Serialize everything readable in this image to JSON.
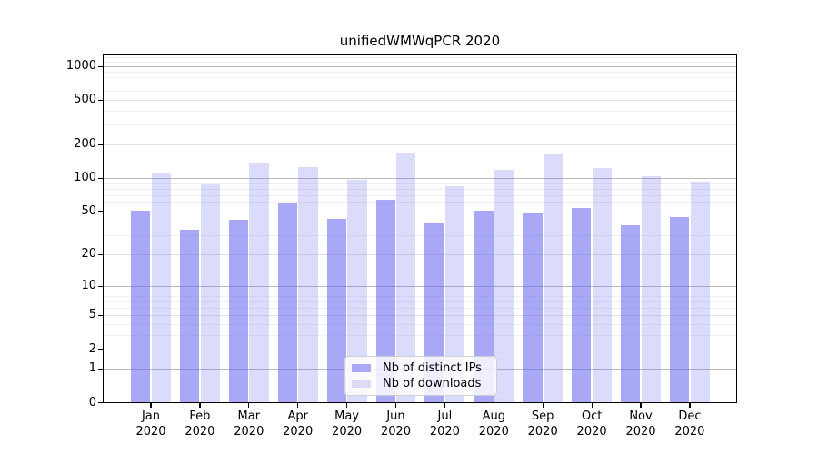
{
  "title": "unifiedWMWqPCR 2020",
  "chart_data": {
    "type": "bar",
    "title": "unifiedWMWqPCR 2020",
    "categories": [
      "Jan",
      "Feb",
      "Mar",
      "Apr",
      "May",
      "Jun",
      "Jul",
      "Aug",
      "Sep",
      "Oct",
      "Nov",
      "Dec"
    ],
    "category_sublabel": "2020",
    "series": [
      {
        "name": "Nb of distinct IPs",
        "color": "#a9a9f5",
        "values": [
          51,
          34,
          42,
          59,
          43,
          63,
          39,
          51,
          48,
          54,
          37,
          44
        ]
      },
      {
        "name": "Nb of downloads",
        "color": "#dcdcfa",
        "values": [
          110,
          88,
          137,
          126,
          96,
          169,
          84,
          118,
          162,
          122,
          104,
          92
        ]
      }
    ],
    "y_ticks": [
      0,
      1,
      2,
      5,
      10,
      20,
      50,
      100,
      200,
      500,
      1000
    ],
    "y_scale": "log10(1+y)",
    "ylim": [
      0,
      1276
    ],
    "grid": true,
    "legend_position": "inside lower center"
  },
  "colors": {
    "bar_ips_fill": "rgba(110,110,240,0.6)",
    "bar_downloads_fill": "rgba(110,110,240,0.25)",
    "grid_major": "#b9b9b9",
    "grid_mid": "#e1e1e1",
    "grid_minor": "#f1f1f1",
    "spine": "#000000",
    "background": "#ffffff"
  }
}
